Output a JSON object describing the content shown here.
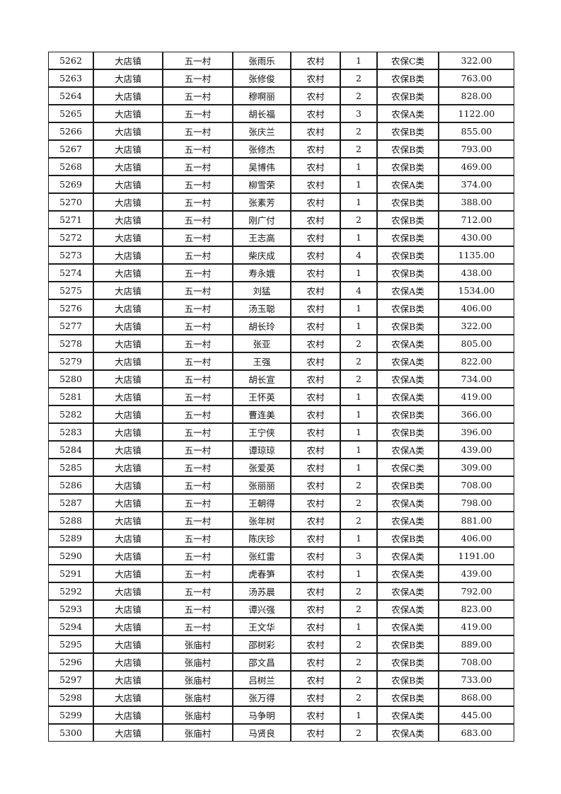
{
  "page": {
    "background_color": "#ffffff",
    "border_color": "#1c1c1c",
    "text_color": "#111111"
  },
  "table": {
    "rows": [
      [
        "5262",
        "大店镇",
        "五一村",
        "张雨乐",
        "农村",
        "1",
        "农保C类",
        "322.00"
      ],
      [
        "5263",
        "大店镇",
        "五一村",
        "张修俊",
        "农村",
        "2",
        "农保B类",
        "763.00"
      ],
      [
        "5264",
        "大店镇",
        "五一村",
        "穆啊丽",
        "农村",
        "2",
        "农保B类",
        "828.00"
      ],
      [
        "5265",
        "大店镇",
        "五一村",
        "胡长福",
        "农村",
        "3",
        "农保A类",
        "1122.00"
      ],
      [
        "5266",
        "大店镇",
        "五一村",
        "张庆兰",
        "农村",
        "2",
        "农保B类",
        "855.00"
      ],
      [
        "5267",
        "大店镇",
        "五一村",
        "张修杰",
        "农村",
        "2",
        "农保B类",
        "793.00"
      ],
      [
        "5268",
        "大店镇",
        "五一村",
        "吴博伟",
        "农村",
        "1",
        "农保B类",
        "469.00"
      ],
      [
        "5269",
        "大店镇",
        "五一村",
        "柳雪荣",
        "农村",
        "1",
        "农保A类",
        "374.00"
      ],
      [
        "5270",
        "大店镇",
        "五一村",
        "张素芳",
        "农村",
        "1",
        "农保B类",
        "388.00"
      ],
      [
        "5271",
        "大店镇",
        "五一村",
        "刚广付",
        "农村",
        "2",
        "农保B类",
        "712.00"
      ],
      [
        "5272",
        "大店镇",
        "五一村",
        "王志高",
        "农村",
        "1",
        "农保B类",
        "430.00"
      ],
      [
        "5273",
        "大店镇",
        "五一村",
        "柴庆成",
        "农村",
        "4",
        "农保B类",
        "1135.00"
      ],
      [
        "5274",
        "大店镇",
        "五一村",
        "寿永娥",
        "农村",
        "1",
        "农保B类",
        "438.00"
      ],
      [
        "5275",
        "大店镇",
        "五一村",
        "刘猛",
        "农村",
        "4",
        "农保A类",
        "1534.00"
      ],
      [
        "5276",
        "大店镇",
        "五一村",
        "汤玉聪",
        "农村",
        "1",
        "农保B类",
        "406.00"
      ],
      [
        "5277",
        "大店镇",
        "五一村",
        "胡长玲",
        "农村",
        "1",
        "农保B类",
        "322.00"
      ],
      [
        "5278",
        "大店镇",
        "五一村",
        "张亚",
        "农村",
        "2",
        "农保A类",
        "805.00"
      ],
      [
        "5279",
        "大店镇",
        "五一村",
        "王强",
        "农村",
        "2",
        "农保A类",
        "822.00"
      ],
      [
        "5280",
        "大店镇",
        "五一村",
        "胡长宣",
        "农村",
        "2",
        "农保A类",
        "734.00"
      ],
      [
        "5281",
        "大店镇",
        "五一村",
        "王怀英",
        "农村",
        "1",
        "农保A类",
        "419.00"
      ],
      [
        "5282",
        "大店镇",
        "五一村",
        "曹连美",
        "农村",
        "1",
        "农保B类",
        "366.00"
      ],
      [
        "5283",
        "大店镇",
        "五一村",
        "王宁侠",
        "农村",
        "1",
        "农保B类",
        "396.00"
      ],
      [
        "5284",
        "大店镇",
        "五一村",
        "谭琼琼",
        "农村",
        "1",
        "农保A类",
        "439.00"
      ],
      [
        "5285",
        "大店镇",
        "五一村",
        "张爱英",
        "农村",
        "1",
        "农保C类",
        "309.00"
      ],
      [
        "5286",
        "大店镇",
        "五一村",
        "张丽丽",
        "农村",
        "2",
        "农保B类",
        "708.00"
      ],
      [
        "5287",
        "大店镇",
        "五一村",
        "王朝得",
        "农村",
        "2",
        "农保A类",
        "798.00"
      ],
      [
        "5288",
        "大店镇",
        "五一村",
        "张年树",
        "农村",
        "2",
        "农保A类",
        "881.00"
      ],
      [
        "5289",
        "大店镇",
        "五一村",
        "陈庆珍",
        "农村",
        "1",
        "农保B类",
        "406.00"
      ],
      [
        "5290",
        "大店镇",
        "五一村",
        "张红雷",
        "农村",
        "3",
        "农保A类",
        "1191.00"
      ],
      [
        "5291",
        "大店镇",
        "五一村",
        "虎春笋",
        "农村",
        "1",
        "农保A类",
        "439.00"
      ],
      [
        "5292",
        "大店镇",
        "五一村",
        "汤苏晨",
        "农村",
        "2",
        "农保A类",
        "792.00"
      ],
      [
        "5293",
        "大店镇",
        "五一村",
        "谭兴强",
        "农村",
        "2",
        "农保A类",
        "823.00"
      ],
      [
        "5294",
        "大店镇",
        "五一村",
        "王文华",
        "农村",
        "1",
        "农保A类",
        "419.00"
      ],
      [
        "5295",
        "大店镇",
        "张庙村",
        "邵树彩",
        "农村",
        "2",
        "农保B类",
        "889.00"
      ],
      [
        "5296",
        "大店镇",
        "张庙村",
        "邵文昌",
        "农村",
        "2",
        "农保B类",
        "708.00"
      ],
      [
        "5297",
        "大店镇",
        "张庙村",
        "吕树兰",
        "农村",
        "2",
        "农保B类",
        "733.00"
      ],
      [
        "5298",
        "大店镇",
        "张庙村",
        "张万得",
        "农村",
        "2",
        "农保B类",
        "868.00"
      ],
      [
        "5299",
        "大店镇",
        "张庙村",
        "马争明",
        "农村",
        "1",
        "农保A类",
        "445.00"
      ],
      [
        "5300",
        "大店镇",
        "张庙村",
        "马贤良",
        "农村",
        "2",
        "农保A类",
        "683.00"
      ]
    ]
  }
}
